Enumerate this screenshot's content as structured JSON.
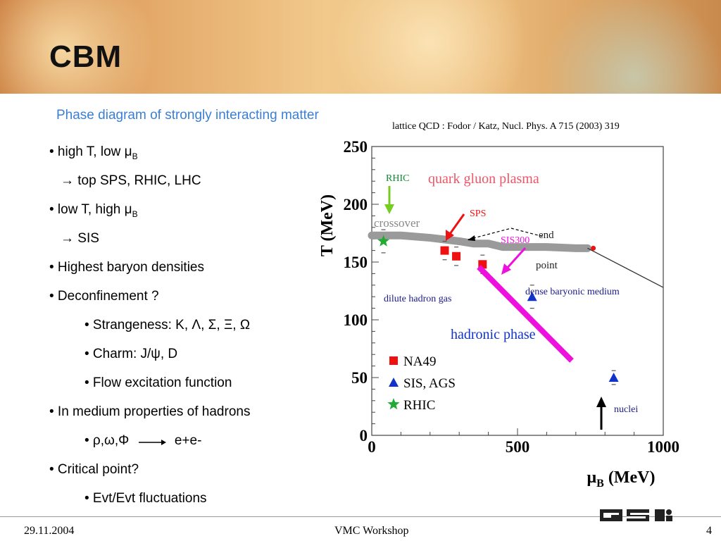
{
  "header": {
    "title": "CBM"
  },
  "slide": {
    "subtitle": "Phase diagram of strongly interacting matter",
    "reference": "lattice QCD : Fodor / Katz, Nucl. Phys. A 715 (2003) 319"
  },
  "bullets": [
    {
      "text": "• high T, low μ",
      "sub": "B"
    },
    {
      "text": "→ top SPS, RHIC, LHC"
    },
    {
      "text": "• low T, high μ",
      "sub": "B"
    },
    {
      "text": "→ SIS"
    },
    {
      "text": "• Highest baryon densities"
    },
    {
      "text": "• Deconfinement ?"
    },
    {
      "text": "• Strangeness: K, Λ, Σ, Ξ, Ω"
    },
    {
      "text": "• Charm: J/ψ, D"
    },
    {
      "text": "• Flow excitation function"
    },
    {
      "text": "• In medium properties of hadrons"
    },
    {
      "text": "• ρ,ω,Φ",
      "tail": "e+e-"
    },
    {
      "text": "• Critical point?"
    },
    {
      "text": "• Evt/Evt fluctuations"
    }
  ],
  "chart_data": {
    "type": "scatter",
    "xlabel": "μB (MeV)",
    "ylabel": "T (MeV)",
    "xlim": [
      0,
      1000
    ],
    "ylim": [
      0,
      250
    ],
    "x_ticks": [
      0,
      500,
      1000
    ],
    "y_ticks": [
      0,
      50,
      100,
      150,
      200,
      250
    ],
    "series": [
      {
        "name": "NA49",
        "marker": "square",
        "color": "#ee1111",
        "x": [
          250,
          290,
          380
        ],
        "y": [
          160,
          155,
          148
        ],
        "errors": [
          8,
          8,
          8
        ]
      },
      {
        "name": "SIS, AGS",
        "marker": "triangle",
        "color": "#1133cc",
        "x": [
          550,
          830
        ],
        "y": [
          120,
          50
        ],
        "errors": [
          10,
          6
        ]
      },
      {
        "name": "RHIC",
        "marker": "star",
        "color": "#22aa33",
        "x": [
          40
        ],
        "y": [
          168
        ],
        "errors": [
          10
        ]
      }
    ],
    "crossover_band": {
      "x": [
        0,
        100,
        200,
        300,
        350,
        400,
        450,
        500,
        600,
        700,
        740
      ],
      "y": [
        173,
        173,
        171,
        168,
        166,
        166,
        163,
        163,
        163,
        162,
        162
      ]
    },
    "transition_line": {
      "x": [
        740,
        1000
      ],
      "y": [
        162,
        128
      ]
    },
    "critical_point": {
      "x": [
        760
      ],
      "y": [
        162
      ]
    },
    "labels": {
      "qgp": "quark gluon plasma",
      "crossover": "crossover",
      "end_point_1": "end",
      "end_point_2": "point",
      "dilute": "dilute hadron gas",
      "dense": "dense baryonic medium",
      "hadronic": "hadronic phase",
      "rhic": "RHIC",
      "sps": "SPS",
      "sis300": "SIS300",
      "nuclei": "nuclei"
    },
    "colors": {
      "qgp": "#ee5566",
      "band": "#999999",
      "magenta": "#ee11dd",
      "arrow_red": "#ee1111",
      "arrow_green": "#77cc22",
      "navy": "#1a1a8c",
      "blue": "#1133cc"
    }
  },
  "footer": {
    "date": "29.11.2004",
    "event": "VMC Workshop",
    "page": "4",
    "logo": "GSI"
  }
}
